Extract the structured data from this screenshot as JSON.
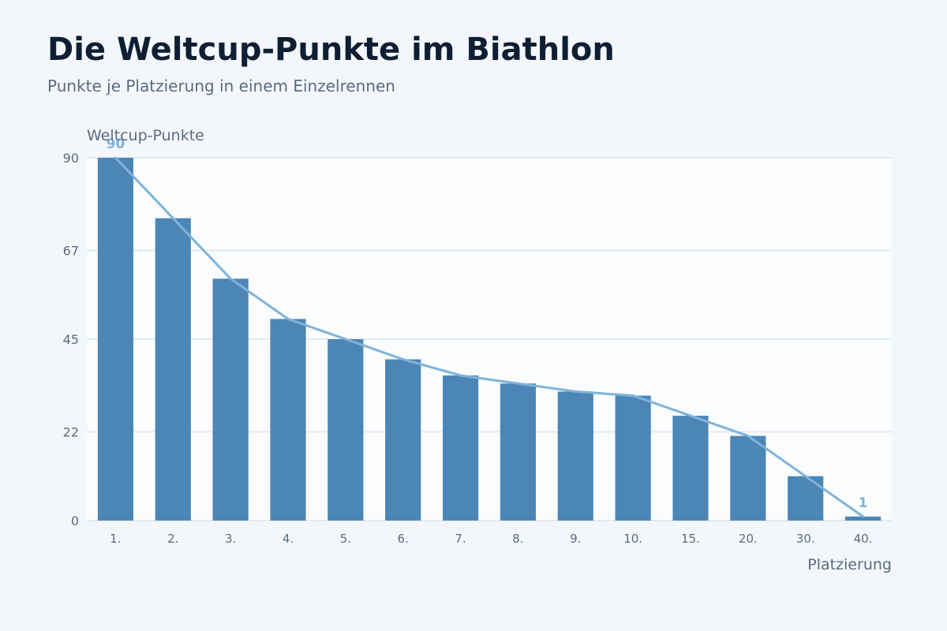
{
  "header": {
    "title": "Die Weltcup-Punkte im Biathlon",
    "subtitle": "Punkte je Platzierung in einem Einzelrennen"
  },
  "colors": {
    "bar": "#4682b4",
    "line": "#7fb3d9",
    "plot_background": "#fafcfe",
    "grid": "#dde4ec"
  },
  "chart_data": {
    "type": "bar",
    "title": "Die Weltcup-Punkte im Biathlon",
    "subtitle": "Punkte je Platzierung in einem Einzelrennen",
    "xlabel": "Platzierung",
    "ylabel": "Weltcup-Punkte",
    "categories": [
      "1.",
      "2.",
      "3.",
      "4.",
      "5.",
      "6.",
      "7.",
      "8.",
      "9.",
      "10.",
      "15.",
      "20.",
      "30.",
      "40."
    ],
    "values": [
      90,
      75,
      60,
      50,
      45,
      40,
      36,
      34,
      32,
      31,
      26,
      21,
      11,
      1
    ],
    "ylim": [
      0,
      90
    ],
    "yticks": [
      0,
      22,
      45,
      67,
      90
    ],
    "overlay_line": true,
    "data_labels": [
      {
        "category": "1.",
        "text": "90"
      },
      {
        "category": "40.",
        "text": "1"
      }
    ],
    "grid": true,
    "legend": false
  }
}
